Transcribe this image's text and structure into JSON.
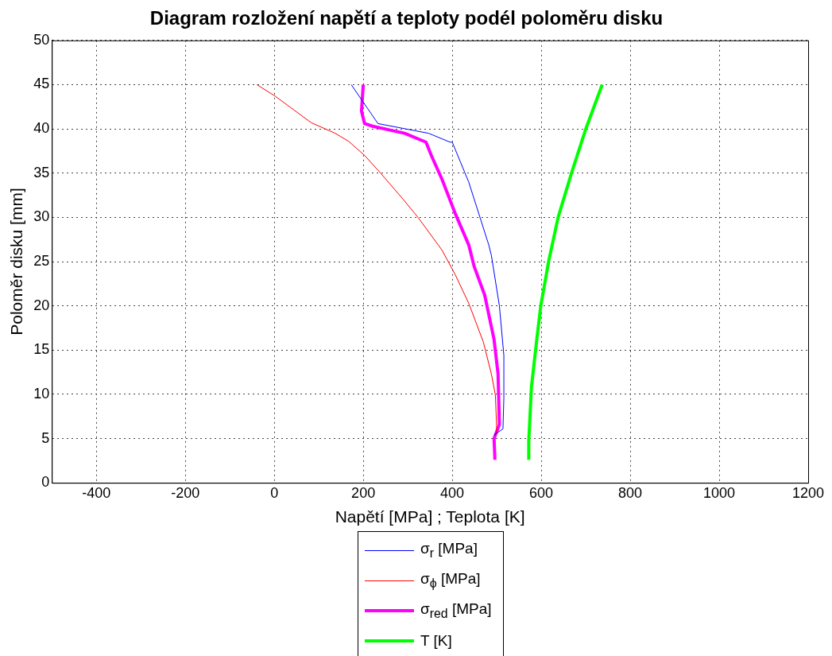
{
  "chart_data": {
    "type": "line",
    "title": "Diagram rozložení napětí a teploty podél poloměru disku",
    "xlabel": "Napětí [MPa] ; Teplota [K]",
    "ylabel": "Poloměr disku [mm]",
    "xlim": [
      -500,
      1200
    ],
    "xticks": [
      -400,
      -200,
      0,
      200,
      400,
      600,
      800,
      1000,
      1200
    ],
    "ylim": [
      0,
      50
    ],
    "yticks": [
      0,
      5,
      10,
      15,
      20,
      25,
      30,
      35,
      40,
      45,
      50
    ],
    "grid": true,
    "legend": "bottom",
    "marker": "none",
    "line_style": "solid",
    "series": [
      {
        "name": "σ$_{r}$ [MPa]",
        "color": "#0000ff",
        "x": [
          494,
          514,
          516,
          516,
          506,
          488,
          482,
          437,
          400,
          395,
          347,
          233,
          173
        ],
        "values": [
          5.4,
          6.1,
          9.6,
          14.4,
          20,
          25.7,
          26.9,
          34,
          38.5,
          38.5,
          39.5,
          40.6,
          45
        ]
      },
      {
        "name": "σ$_{ϕ}$ [MPa]",
        "color": "#ff0000",
        "x": [
          496,
          500,
          497,
          488,
          470,
          437,
          407,
          377,
          323,
          287,
          239,
          203,
          167,
          137,
          83,
          2,
          -39
        ],
        "values": [
          5.3,
          6,
          9.9,
          12.3,
          15.9,
          20.3,
          23.5,
          26.3,
          30,
          32.2,
          35,
          37,
          38.6,
          39.5,
          40.7,
          43.7,
          45
        ]
      },
      {
        "name": "σ$_{red}$ [MPa]",
        "color": "#ff00ff",
        "x": [
          496,
          494,
          506,
          503,
          494,
          473,
          449,
          437,
          407,
          377,
          353,
          341,
          293,
          221,
          203,
          196,
          200
        ],
        "values": [
          2.6,
          5,
          6.6,
          12.3,
          16.2,
          21.2,
          24.5,
          26.9,
          30.4,
          34.3,
          37,
          38.5,
          39.5,
          40.3,
          40.6,
          42,
          45
        ]
      },
      {
        "name": "T [K]",
        "color": "#00ff00",
        "x": [
          572,
          572,
          578,
          590,
          599,
          617,
          638,
          668,
          701,
          737
        ],
        "values": [
          2.6,
          4.7,
          10.8,
          16.2,
          20,
          25.1,
          30,
          35,
          40.1,
          45
        ]
      }
    ]
  }
}
